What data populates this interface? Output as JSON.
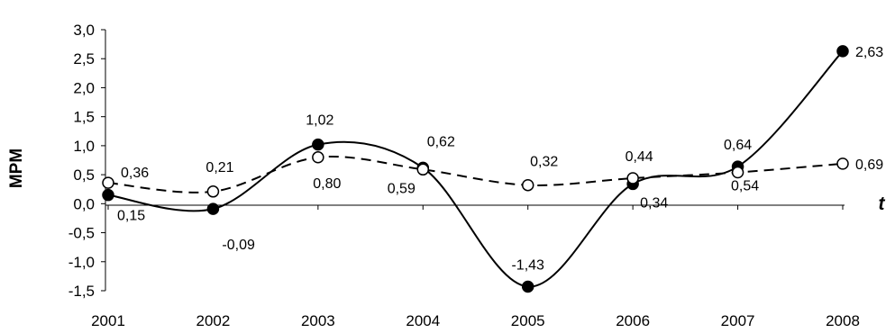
{
  "chart_data": {
    "type": "line",
    "title": "",
    "xlabel": "t",
    "ylabel": "MPM",
    "ylim": [
      -1.5,
      3.0
    ],
    "ytick_step": 0.5,
    "decimal_separator": ",",
    "grid": false,
    "legend": "none",
    "categories": [
      "2001",
      "2002",
      "2003",
      "2004",
      "2005",
      "2006",
      "2007",
      "2008"
    ],
    "series": [
      {
        "line_style": "solid",
        "marker": "filled-circle",
        "color": "#000000",
        "values": [
          0.15,
          -0.09,
          1.02,
          0.62,
          -1.43,
          0.34,
          0.64,
          2.63
        ],
        "labels": [
          "0,15",
          "-0,09",
          "1,02",
          "0,62",
          "-1,43",
          "0,34",
          "0,64",
          "2,63"
        ]
      },
      {
        "line_style": "dashed",
        "marker": "open-circle",
        "color": "#000000",
        "values": [
          0.36,
          0.21,
          0.8,
          0.59,
          0.32,
          0.44,
          0.54,
          0.69
        ],
        "labels": [
          "0,36",
          "0,21",
          "0,80",
          "0,59",
          "0,32",
          "0,44",
          "0,54",
          "0,69"
        ]
      }
    ]
  }
}
